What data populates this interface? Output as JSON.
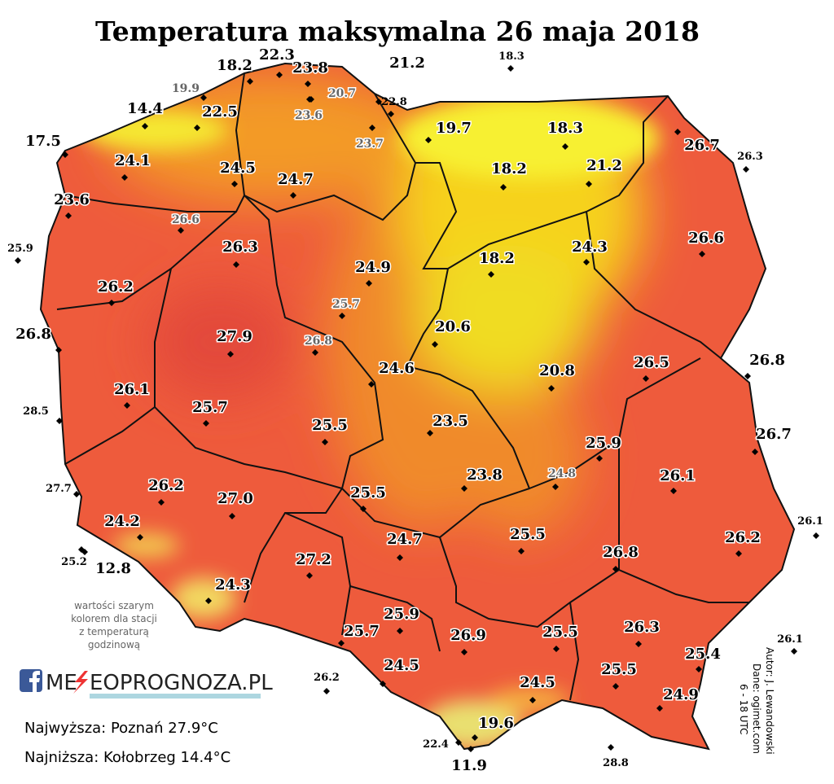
{
  "title": "Temperatura maksymalna 26 maja 2018",
  "stations": [
    "18.2",
    "22.3",
    "23.8",
    "20.7",
    "23.6",
    "21.2",
    "18.3",
    "19.9",
    "14.4",
    "22.5",
    "22.8",
    "23.7",
    "19.7",
    "18.3",
    "17.5",
    "26.7",
    "26.3",
    "24.1",
    "24.5",
    "24.7",
    "18.2",
    "21.2",
    "23.6",
    "26.6",
    "25.9",
    "26.3",
    "24.9",
    "18.2",
    "24.3",
    "26.6",
    "26.2",
    "25.7",
    "26.8",
    "27.9",
    "26.8",
    "20.6",
    "24.6",
    "20.8",
    "26.5",
    "26.8",
    "26.1",
    "28.5",
    "25.7",
    "23.5",
    "25.5",
    "26.7",
    "25.9",
    "27.7",
    "26.2",
    "24.8",
    "23.8",
    "27.0",
    "25.5",
    "26.1",
    "24.2",
    "26.1",
    "25.5",
    "26.2",
    "24.7",
    "25.2",
    "12.8",
    "27.2",
    "26.8",
    "24.3",
    "25.9",
    "25.7",
    "26.3",
    "26.9",
    "25.5",
    "25.4",
    "26.1",
    "24.5",
    "25.5",
    "26.2",
    "24.5",
    "24.9",
    "19.6",
    "22.4",
    "11.9",
    "28.8"
  ],
  "note": [
    "wartości szarym",
    "kolorem dla stacji",
    "z temperaturą",
    "godzinową"
  ],
  "logo": {
    "left": "ME",
    "right": "EOPROGNOZA.PL"
  },
  "extremes": {
    "max": "Najwyższa: Poznań 27.9°C",
    "min": "Najniższa: Kołobrzeg 14.4°C"
  },
  "credits": [
    "Autor: J. Lewandowski",
    "Dane: ogimet.com",
    "6 - 18 UTC"
  ]
}
